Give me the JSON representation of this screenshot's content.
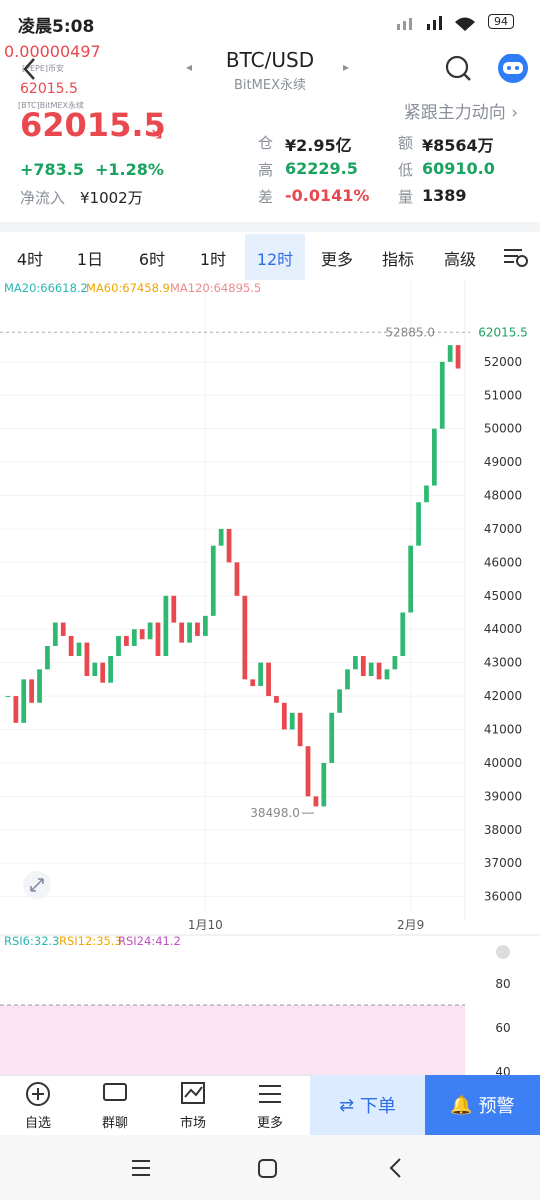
{
  "status": {
    "time": "凌晨5:08",
    "battery": "94"
  },
  "header": {
    "pair": "BTC/USD",
    "exchange": "BitMEX永续",
    "mini_price_1": "0.00000497",
    "mini_label_1": "[PEPE]币安",
    "mini_price_2": "62015.5",
    "mini_label_2": "[BTC]BitMEX永续",
    "link": "紧跟主力动向 ›"
  },
  "quote": {
    "price": "62015.5",
    "change": "+783.5",
    "change_pct": "+1.28%",
    "inflow_label": "净流入",
    "inflow": "¥1002万"
  },
  "stats": [
    [
      "仓",
      "¥2.95亿"
    ],
    [
      "额",
      "¥8564万"
    ],
    [
      "高",
      "62229.5"
    ],
    [
      "低",
      "60910.0"
    ],
    [
      "差",
      "-0.0141%"
    ],
    [
      "量",
      "1389"
    ]
  ],
  "tabs": [
    "4时",
    "1日",
    "6时",
    "1时",
    "12时",
    "更多",
    "指标",
    "高级"
  ],
  "ma_legend": [
    "MA20:66618.2",
    "MA60:67458.9",
    "MA120:64895.5"
  ],
  "chart_data": {
    "type": "candlestick",
    "values": [
      42000,
      41200,
      42500,
      41800,
      42800,
      43500,
      44200,
      43800,
      43200,
      43600,
      42600,
      43000,
      42400,
      43200,
      43800,
      43500,
      44000,
      43700,
      44200,
      43200,
      45000,
      44200,
      43600,
      44200,
      43800,
      44400,
      46500,
      47000,
      46000,
      45000,
      42500,
      42300,
      43000,
      42000,
      41800,
      41000,
      41500,
      40500,
      39000,
      38700,
      40000,
      41500,
      42200,
      42800,
      43200,
      42600,
      43000,
      42500,
      42800,
      43200,
      44500,
      46500,
      47800,
      48300,
      50000,
      52000,
      52500,
      51800
    ],
    "ylim": [
      35600,
      53850
    ],
    "yticks": [
      36000,
      37000,
      38000,
      39000,
      40000,
      41000,
      42000,
      43000,
      44000,
      45000,
      46000,
      47000,
      48000,
      49000,
      50000,
      51000,
      52000
    ],
    "xticks": [
      {
        "value": 25,
        "label": "1月10"
      },
      {
        "value": 51,
        "label": "2月9"
      }
    ],
    "high_mark": {
      "value": 52885.0,
      "label": "52885.0"
    },
    "low_mark": {
      "value": 38498.0,
      "label": "38498.0"
    },
    "last_price_tag": "62015.5"
  },
  "rsi_panel": {
    "legend": [
      "RSI6:32.3",
      "RSI12:35.3",
      "RSI24:41.2"
    ],
    "ylim": [
      40,
      100
    ],
    "yticks": [
      80,
      60,
      40
    ]
  },
  "bottom_nav": {
    "items": [
      "自选",
      "群聊",
      "市场",
      "更多"
    ],
    "order": "下单",
    "alert": "预警"
  }
}
